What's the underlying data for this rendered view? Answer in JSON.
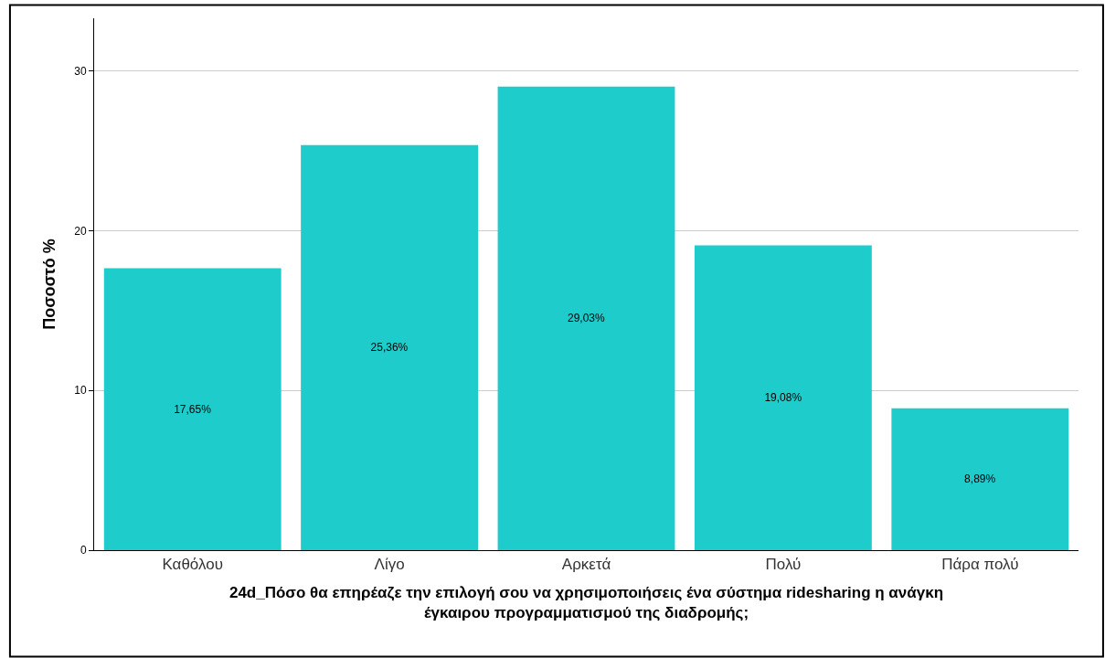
{
  "chart_data": {
    "type": "bar",
    "xlabel": "24d_Πόσο θα επηρέαζε την επιλογή σου να χρησιμοποιήσεις ένα σύστημα ridesharing η ανάγκη έγκαιρου προγραμματισμού της διαδρομής;",
    "ylabel": "Ποσοστό %",
    "categories": [
      "Καθόλου",
      "Λίγο",
      "Αρκετά",
      "Πολύ",
      "Πάρα πολύ"
    ],
    "values": [
      17.65,
      25.36,
      29.03,
      19.08,
      8.89
    ],
    "value_labels": [
      "17,65%",
      "25,36%",
      "29,03%",
      "19,08%",
      "8,89%"
    ],
    "color": "#1ecccc",
    "ylim": [
      0,
      33.3
    ],
    "yticks": [
      0,
      10,
      20,
      30
    ],
    "grid": "y",
    "legend": false
  }
}
